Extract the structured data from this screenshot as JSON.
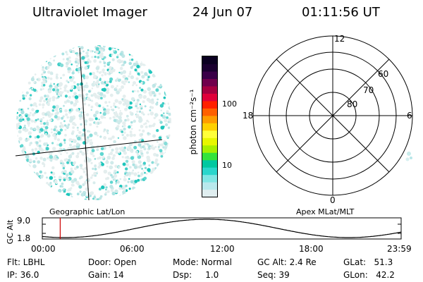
{
  "header": {
    "title": "Ultraviolet Imager",
    "date": "24 Jun 07",
    "time": "01:11:56 UT"
  },
  "colorbar": {
    "unit_label": "photon cm⁻²s⁻¹",
    "ticks": [
      {
        "label": "100",
        "value": 100
      },
      {
        "label": "10",
        "value": 10
      }
    ],
    "scale": "log",
    "colors": [
      "#e0eef0",
      "#b8e8ec",
      "#80e6e4",
      "#2ad6cc",
      "#00c8a0",
      "#34e33c",
      "#a6f000",
      "#e7f700",
      "#ffff3a",
      "#ffd000",
      "#ff9c00",
      "#ff6000",
      "#ff2000",
      "#e0003a",
      "#a60040",
      "#70004c",
      "#3a0048",
      "#1a0030",
      "#0a0020"
    ]
  },
  "image_panel": {
    "caption": "Geographic Lat/Lon"
  },
  "polar_panel": {
    "caption": "Apex MLat/MLT",
    "lat_labels": [
      "60",
      "70",
      "80"
    ],
    "mlt_labels": {
      "top": "12",
      "bottom": "0",
      "left": "18",
      "right": "6"
    }
  },
  "altitude_plot": {
    "ylabel": "GC Alt",
    "yticks": [
      "9.0",
      "1.8"
    ],
    "xticks": [
      "00:00",
      "06:00",
      "12:00",
      "18:00",
      "23:59"
    ],
    "marker_time_hours": 1.2,
    "colors": {
      "marker": "#cc0000"
    }
  },
  "info": {
    "col1": [
      "Flt: LBHL",
      "IP: 36.0"
    ],
    "col2": [
      "Door: Open",
      "Gain: 14"
    ],
    "col3": [
      "Mode: Normal",
      "Dsp:     1.0"
    ],
    "col4": [
      "GC Alt: 2.4 Re",
      "Seq: 39"
    ],
    "col5": [
      "GLat:   51.3",
      "GLon:   42.2"
    ]
  }
}
